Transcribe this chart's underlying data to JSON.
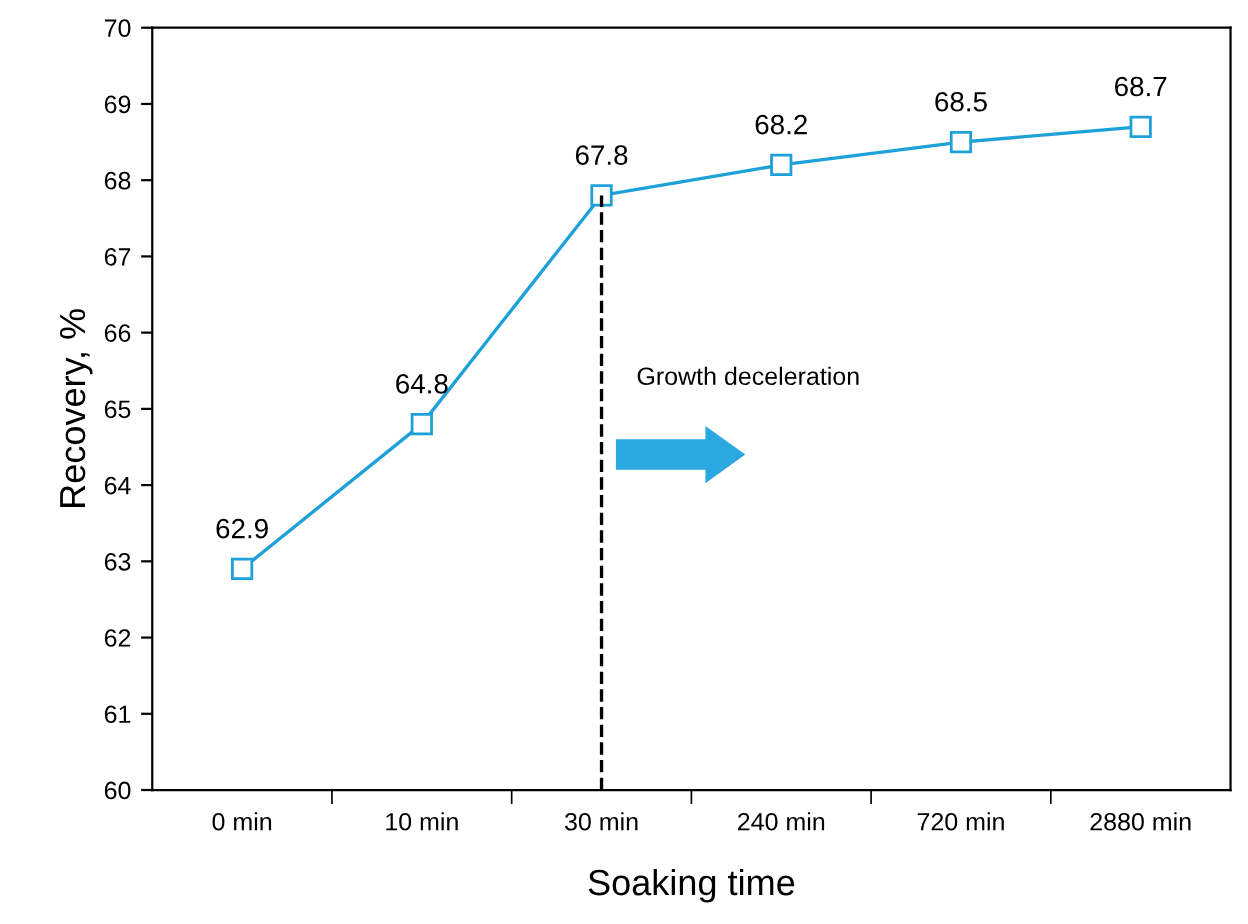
{
  "chart_data": {
    "type": "line",
    "xlabel": "Soaking time",
    "ylabel": "Recovery, %",
    "categories": [
      "0 min",
      "10 min",
      "30 min",
      "240 min",
      "720 min",
      "2880 min"
    ],
    "series": [
      {
        "color": "#1ea0d9",
        "values": [
          62.9,
          64.8,
          67.8,
          68.2,
          68.5,
          68.7
        ]
      }
    ],
    "ylim": [
      60,
      70
    ],
    "yticks": [
      60,
      61,
      62,
      63,
      64,
      65,
      66,
      67,
      68,
      69,
      70
    ],
    "marker": "square",
    "line_style": "solid",
    "data_labels": true,
    "grid": false,
    "legend": false,
    "ref_lines": [
      {
        "axis": "x",
        "value": "30 min",
        "color": "#000000",
        "line_style": "dashed"
      }
    ],
    "annotations": [
      "Growth deceleration"
    ]
  }
}
